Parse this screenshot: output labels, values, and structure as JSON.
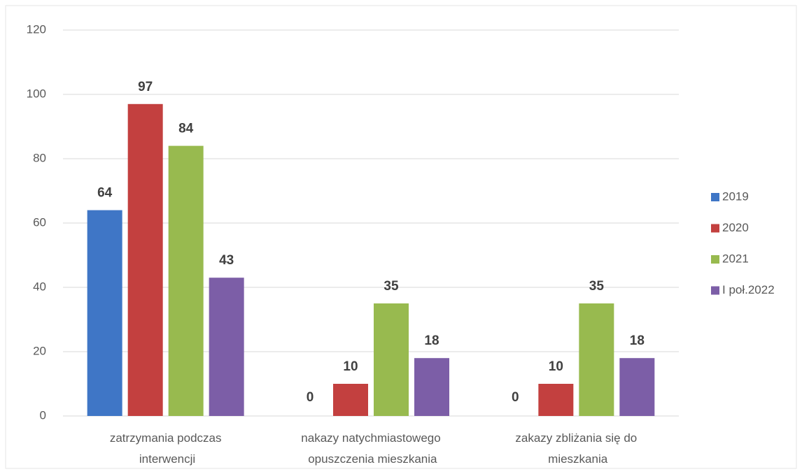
{
  "chart_data": {
    "type": "bar",
    "categories": [
      "zatrzymania podczas interwencji",
      "nakazy natychmiastowego opuszczenia mieszkania",
      "zakazy zbliżania się do mieszkania"
    ],
    "series": [
      {
        "name": "2019",
        "color": "#3f76c6",
        "values": [
          64,
          0,
          0
        ]
      },
      {
        "name": "2020",
        "color": "#c3403f",
        "values": [
          97,
          10,
          10
        ]
      },
      {
        "name": "2021",
        "color": "#98ba4f",
        "values": [
          84,
          35,
          35
        ]
      },
      {
        "name": "I poł.2022",
        "color": "#7c5ea7",
        "values": [
          43,
          18,
          18
        ]
      }
    ],
    "ylim": [
      0,
      120
    ],
    "yticks": [
      0,
      20,
      40,
      60,
      80,
      100,
      120
    ],
    "grid": true,
    "legend": "right"
  }
}
